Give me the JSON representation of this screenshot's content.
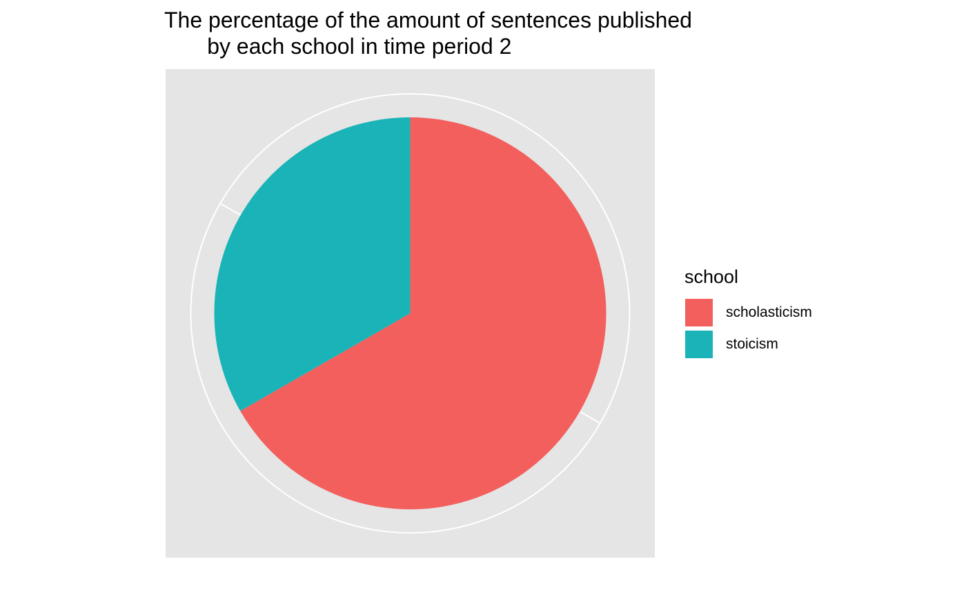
{
  "chart_data": {
    "type": "pie",
    "title": "The percentage of the amount of sentences published\n       by each school in time period 2",
    "title_lines": [
      "The percentage of the amount of sentences published",
      "       by each school in time period 2"
    ],
    "legend_title": "school",
    "legend_position": "right",
    "panel_background": "#e5e5e5",
    "grid": true,
    "slices": [
      {
        "label": "scholasticism",
        "value": 66.7,
        "color": "#f25f5c"
      },
      {
        "label": "stoicism",
        "value": 33.3,
        "color": "#1ab4b8"
      }
    ]
  }
}
